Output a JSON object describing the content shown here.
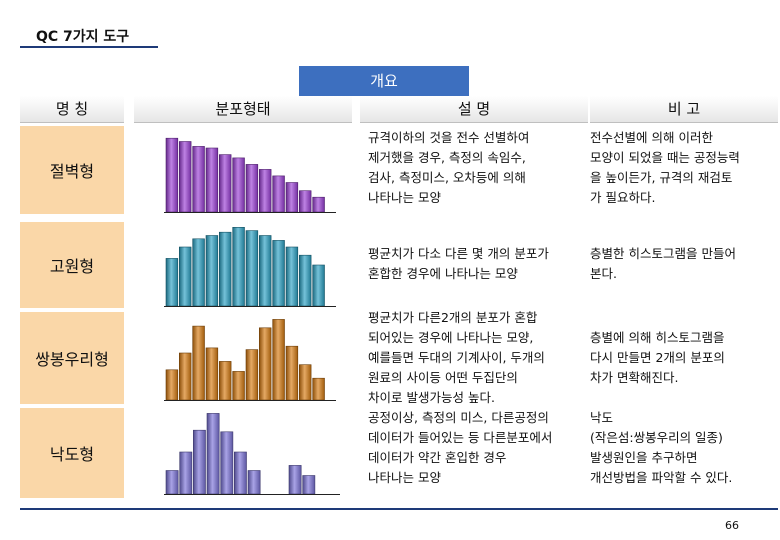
{
  "title": "QC 7가지 도구",
  "overview_label": "개요",
  "headers": {
    "name": "명 칭",
    "shape": "분포형태",
    "desc": "설 명",
    "remark": "비 고"
  },
  "rows": [
    {
      "name": "절벽형",
      "desc": [
        "규격이하의 것을 전수 선별하여",
        "제거했을 경우, 측정의 속임수,",
        "검사, 측정미스, 오차등에 의해",
        "나타나는 모양"
      ],
      "remark": [
        "전수선별에 의해 이러한",
        "모양이 되었을 때는 공정능력",
        "을 높이든가, 규격의 재검토",
        "가 필요하다."
      ],
      "chart_color": "#9b3fd6",
      "bars": [
        0.9,
        0.86,
        0.8,
        0.78,
        0.7,
        0.66,
        0.58,
        0.52,
        0.44,
        0.36,
        0.26,
        0.18
      ]
    },
    {
      "name": "고원형",
      "desc": [
        "평균치가 다소 다른 몇 개의 분포가",
        "혼합한 경우에 나타나는 모양"
      ],
      "remark": [
        "층별한 히스토그램을 만들어",
        "본다."
      ],
      "chart_color": "#2aa1c4",
      "bars": [
        0.58,
        0.72,
        0.82,
        0.86,
        0.9,
        0.96,
        0.92,
        0.86,
        0.8,
        0.72,
        0.62,
        0.5
      ]
    },
    {
      "name": "쌍봉우리형",
      "desc": [
        "평균치가 다른2개의 분포가 혼합",
        "되어있는 경우에 나타나는 모양,",
        "예를들면 두대의 기계사이, 두개의",
        "원료의 사이등 어떤 두집단의",
        "차이로 발생가능성 높다."
      ],
      "remark": [
        "층별에 의해 히스토그램을",
        "다시 만들면 2개의 분포의",
        "차가 면확해진다."
      ],
      "chart_color": "#d77a10",
      "bars": [
        0.36,
        0.56,
        0.88,
        0.62,
        0.46,
        0.34,
        0.6,
        0.86,
        0.96,
        0.64,
        0.42,
        0.26
      ]
    },
    {
      "name": "낙도형",
      "desc": [
        "공정이상, 측정의 미스, 다른공정의",
        "데이터가 들어있는 등 다른분포에서",
        "데이터가 약간 혼입한 경우",
        "나타나는 모양"
      ],
      "remark": [
        "낙도",
        "(작은섬:쌍봉우리의 일종)",
        "발생원인을 추구하면",
        "개선방법을 파악할 수 있다."
      ],
      "chart_color": "#7a72d8",
      "bars": [
        0.28,
        0.5,
        0.76,
        0.96,
        0.74,
        0.5,
        0.28,
        0.0,
        0.0,
        0.34,
        0.22,
        0.0
      ]
    }
  ],
  "page_number": "66"
}
